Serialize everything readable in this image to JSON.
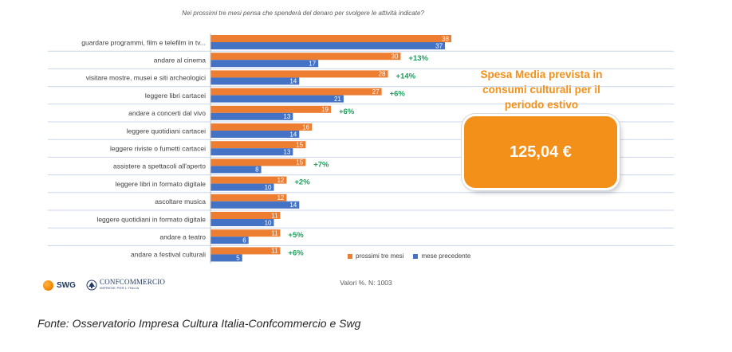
{
  "question": "Nei prossimi tre mesi pensa che spenderà del denaro per svolgere le attività indicate?",
  "chart_data": {
    "type": "bar",
    "orientation": "horizontal",
    "title": "",
    "xlabel": "",
    "ylabel": "",
    "xlim": [
      0,
      40
    ],
    "grid": true,
    "legend_position": "bottom-right",
    "categories": [
      "guardare programmi, film e telefilm in tv...",
      "andare al cinema",
      "visitare mostre, musei e siti archeologici",
      "leggere libri cartacei",
      "andare a concerti dal vivo",
      "leggere quotidiani cartacei",
      "leggere riviste o fumetti cartacei",
      "assistere a spettacoli all'aperto",
      "leggere libri in formato digitale",
      "ascoltare musica",
      "leggere quotidiani in formato digitale",
      "andare a teatro",
      "andare a festival culturali"
    ],
    "series": [
      {
        "name": "prossimi tre mesi",
        "color": "#ed7d31",
        "values": [
          38,
          30,
          28,
          27,
          19,
          16,
          15,
          15,
          12,
          12,
          11,
          11,
          11
        ]
      },
      {
        "name": "mese precedente",
        "color": "#4472c4",
        "values": [
          37,
          17,
          14,
          21,
          13,
          14,
          13,
          8,
          10,
          14,
          10,
          6,
          5
        ]
      }
    ],
    "annotations": [
      "",
      "+13%",
      "+14%",
      "+6%",
      "+6%",
      "",
      "",
      "+7%",
      "+2%",
      "",
      "",
      "+5%",
      "+6%"
    ],
    "annotation_color": "#1aa15b"
  },
  "promo": {
    "title": "Spesa Media prevista in consumi culturali per il periodo estivo",
    "value": "125,04 €",
    "color": "#f39019"
  },
  "footnote": "Valori %. N: 1003",
  "logos": {
    "swg": "SWG",
    "confcommercio": "CONFCOMMERCIO",
    "confcommercio_sub": "IMPRESE PER L'ITALIA"
  },
  "source": "Fonte: Osservatorio Impresa Cultura Italia-Confcommercio e Swg"
}
